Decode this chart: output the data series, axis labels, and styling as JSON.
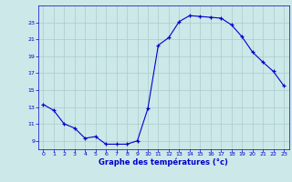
{
  "hours": [
    0,
    1,
    2,
    3,
    4,
    5,
    6,
    7,
    8,
    9,
    10,
    11,
    12,
    13,
    14,
    15,
    16,
    17,
    18,
    19,
    20,
    21,
    22,
    23
  ],
  "temps": [
    13.3,
    12.6,
    11.0,
    10.5,
    9.3,
    9.5,
    8.6,
    8.6,
    8.6,
    9.0,
    12.8,
    20.3,
    21.2,
    23.1,
    23.8,
    23.7,
    23.6,
    23.5,
    22.7,
    21.3,
    19.5,
    18.3,
    17.2,
    15.5
  ],
  "line_color": "#0000cc",
  "marker": "+",
  "bg_color": "#cce8e8",
  "grid_color": "#aacccc",
  "xlabel": "Graphe des températures (°c)",
  "xlabel_color": "#0000cc",
  "tick_color": "#0000cc",
  "ylim": [
    8.0,
    25.0
  ],
  "yticks": [
    9,
    11,
    13,
    15,
    17,
    19,
    21,
    23
  ],
  "xlim": [
    -0.5,
    23.5
  ],
  "xticks": [
    0,
    1,
    2,
    3,
    4,
    5,
    6,
    7,
    8,
    9,
    10,
    11,
    12,
    13,
    14,
    15,
    16,
    17,
    18,
    19,
    20,
    21,
    22,
    23
  ],
  "fig_width": 3.2,
  "fig_height": 2.0,
  "dpi": 100
}
